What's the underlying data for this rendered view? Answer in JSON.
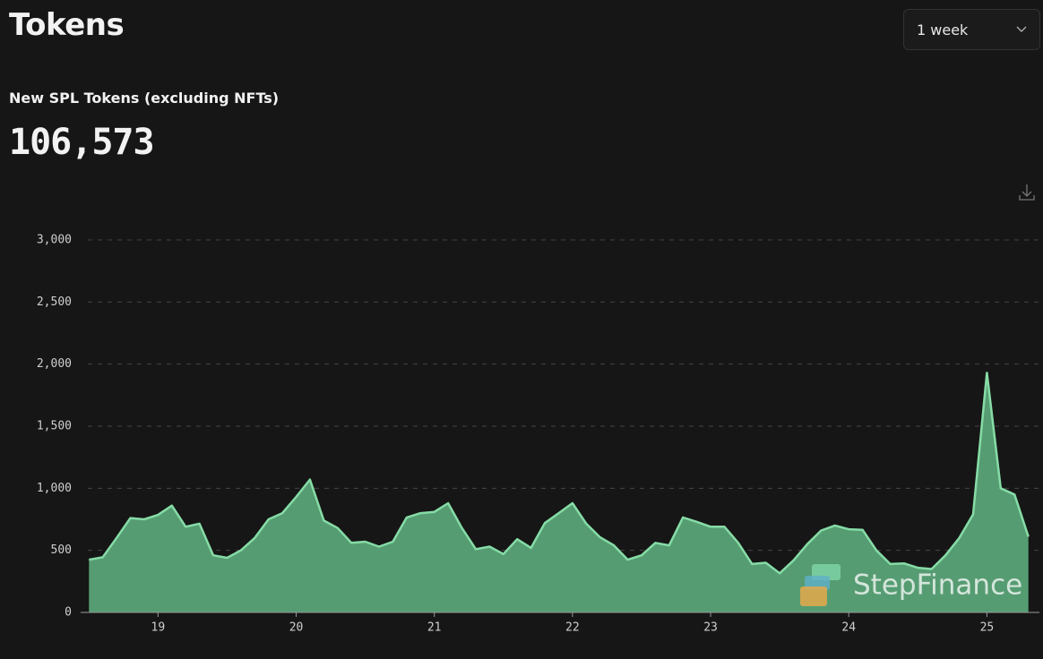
{
  "header": {
    "title": "Tokens",
    "range": "1 week",
    "subtitle": "New SPL Tokens (excluding NFTs)",
    "total": "106,573"
  },
  "watermark": "StepFinance",
  "chart_data": {
    "type": "area",
    "x": [
      18.5,
      18.6,
      18.7,
      18.8,
      18.9,
      19.0,
      19.1,
      19.2,
      19.3,
      19.4,
      19.5,
      19.6,
      19.7,
      19.8,
      19.9,
      20.0,
      20.1,
      20.2,
      20.3,
      20.4,
      20.5,
      20.6,
      20.7,
      20.8,
      20.9,
      21.0,
      21.1,
      21.2,
      21.3,
      21.4,
      21.5,
      21.6,
      21.7,
      21.8,
      21.9,
      22.0,
      22.1,
      22.2,
      22.3,
      22.4,
      22.5,
      22.6,
      22.7,
      22.8,
      22.9,
      23.0,
      23.1,
      23.2,
      23.3,
      23.4,
      23.5,
      23.6,
      23.7,
      23.8,
      23.9,
      24.0,
      24.1,
      24.2,
      24.3,
      24.4,
      24.5,
      24.6,
      24.7,
      24.8,
      24.9,
      25.0,
      25.1,
      25.2,
      25.3
    ],
    "values": [
      425,
      445,
      600,
      760,
      750,
      785,
      860,
      690,
      715,
      460,
      440,
      500,
      600,
      750,
      800,
      930,
      1070,
      740,
      680,
      560,
      570,
      530,
      570,
      765,
      800,
      810,
      880,
      680,
      510,
      530,
      470,
      590,
      520,
      720,
      800,
      880,
      715,
      605,
      540,
      425,
      460,
      560,
      540,
      765,
      730,
      690,
      690,
      560,
      390,
      400,
      315,
      420,
      550,
      660,
      700,
      670,
      665,
      500,
      390,
      395,
      360,
      350,
      460,
      600,
      790,
      1930,
      1000,
      950,
      610
    ],
    "color": "#5aa377",
    "line_color": "#86dca6",
    "xlim": [
      18.44,
      25.38
    ],
    "xticks": [
      19,
      20,
      21,
      22,
      23,
      24,
      25
    ],
    "ylim": [
      0,
      3000
    ],
    "yticks": [
      0,
      500,
      {
        "value": 1000,
        "label": "1,000"
      },
      {
        "value": 1500,
        "label": "1,500"
      },
      {
        "value": 2000,
        "label": "2,000"
      },
      {
        "value": 2500,
        "label": "2,500"
      },
      {
        "value": 3000,
        "label": "3,000"
      }
    ],
    "grid": true
  }
}
